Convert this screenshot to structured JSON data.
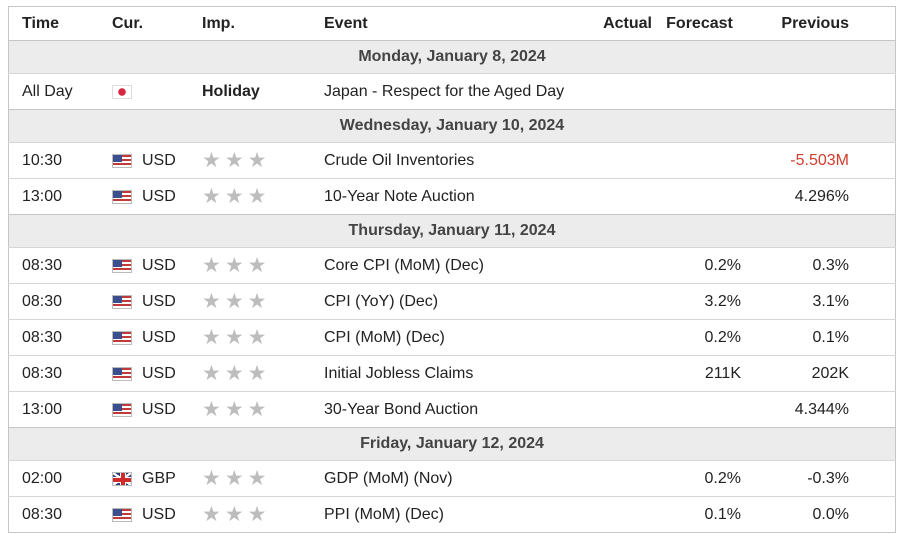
{
  "headers": {
    "time": "Time",
    "cur": "Cur.",
    "imp": "Imp.",
    "event": "Event",
    "actual": "Actual",
    "forecast": "Forecast",
    "previous": "Previous"
  },
  "dates": [
    "Monday, January 8, 2024",
    "Wednesday, January 10, 2024",
    "Thursday, January 11, 2024",
    "Friday, January 12, 2024"
  ],
  "rows": [
    {
      "time": "All Day",
      "cur": "",
      "flag": "jp",
      "imp": "Holiday",
      "event": "Japan - Respect for the Aged Day",
      "actual": "",
      "forecast": "",
      "previous": ""
    },
    {
      "time": "10:30",
      "cur": "USD",
      "flag": "us",
      "stars": 3,
      "event": "Crude Oil Inventories",
      "actual": "",
      "forecast": "",
      "previous": "-5.503M",
      "previous_color": "#d23c2c"
    },
    {
      "time": "13:00",
      "cur": "USD",
      "flag": "us",
      "stars": 3,
      "event": "10-Year Note Auction",
      "actual": "",
      "forecast": "",
      "previous": "4.296%"
    },
    {
      "time": "08:30",
      "cur": "USD",
      "flag": "us",
      "stars": 3,
      "event": "Core CPI (MoM) (Dec)",
      "actual": "",
      "forecast": "0.2%",
      "previous": "0.3%"
    },
    {
      "time": "08:30",
      "cur": "USD",
      "flag": "us",
      "stars": 3,
      "event": "CPI (YoY) (Dec)",
      "actual": "",
      "forecast": "3.2%",
      "previous": "3.1%"
    },
    {
      "time": "08:30",
      "cur": "USD",
      "flag": "us",
      "stars": 3,
      "event": "CPI (MoM) (Dec)",
      "actual": "",
      "forecast": "0.2%",
      "previous": "0.1%"
    },
    {
      "time": "08:30",
      "cur": "USD",
      "flag": "us",
      "stars": 3,
      "event": "Initial Jobless Claims",
      "actual": "",
      "forecast": "211K",
      "previous": "202K"
    },
    {
      "time": "13:00",
      "cur": "USD",
      "flag": "us",
      "stars": 3,
      "event": "30-Year Bond Auction",
      "actual": "",
      "forecast": "",
      "previous": "4.344%"
    },
    {
      "time": "02:00",
      "cur": "GBP",
      "flag": "gb",
      "stars": 3,
      "event": "GDP (MoM) (Nov)",
      "actual": "",
      "forecast": "0.2%",
      "previous": "-0.3%"
    },
    {
      "time": "08:30",
      "cur": "USD",
      "flag": "us",
      "stars": 3,
      "event": "PPI (MoM) (Dec)",
      "actual": "",
      "forecast": "0.1%",
      "previous": "0.0%"
    }
  ],
  "icons": {
    "star": "star-icon",
    "flag_us": "us-flag-icon",
    "flag_jp": "japan-flag-icon",
    "flag_gb": "uk-flag-icon"
  },
  "colors": {
    "negative": "#d23c2c",
    "star": "#bdbdbd",
    "date_row_bg": "#ececec"
  }
}
